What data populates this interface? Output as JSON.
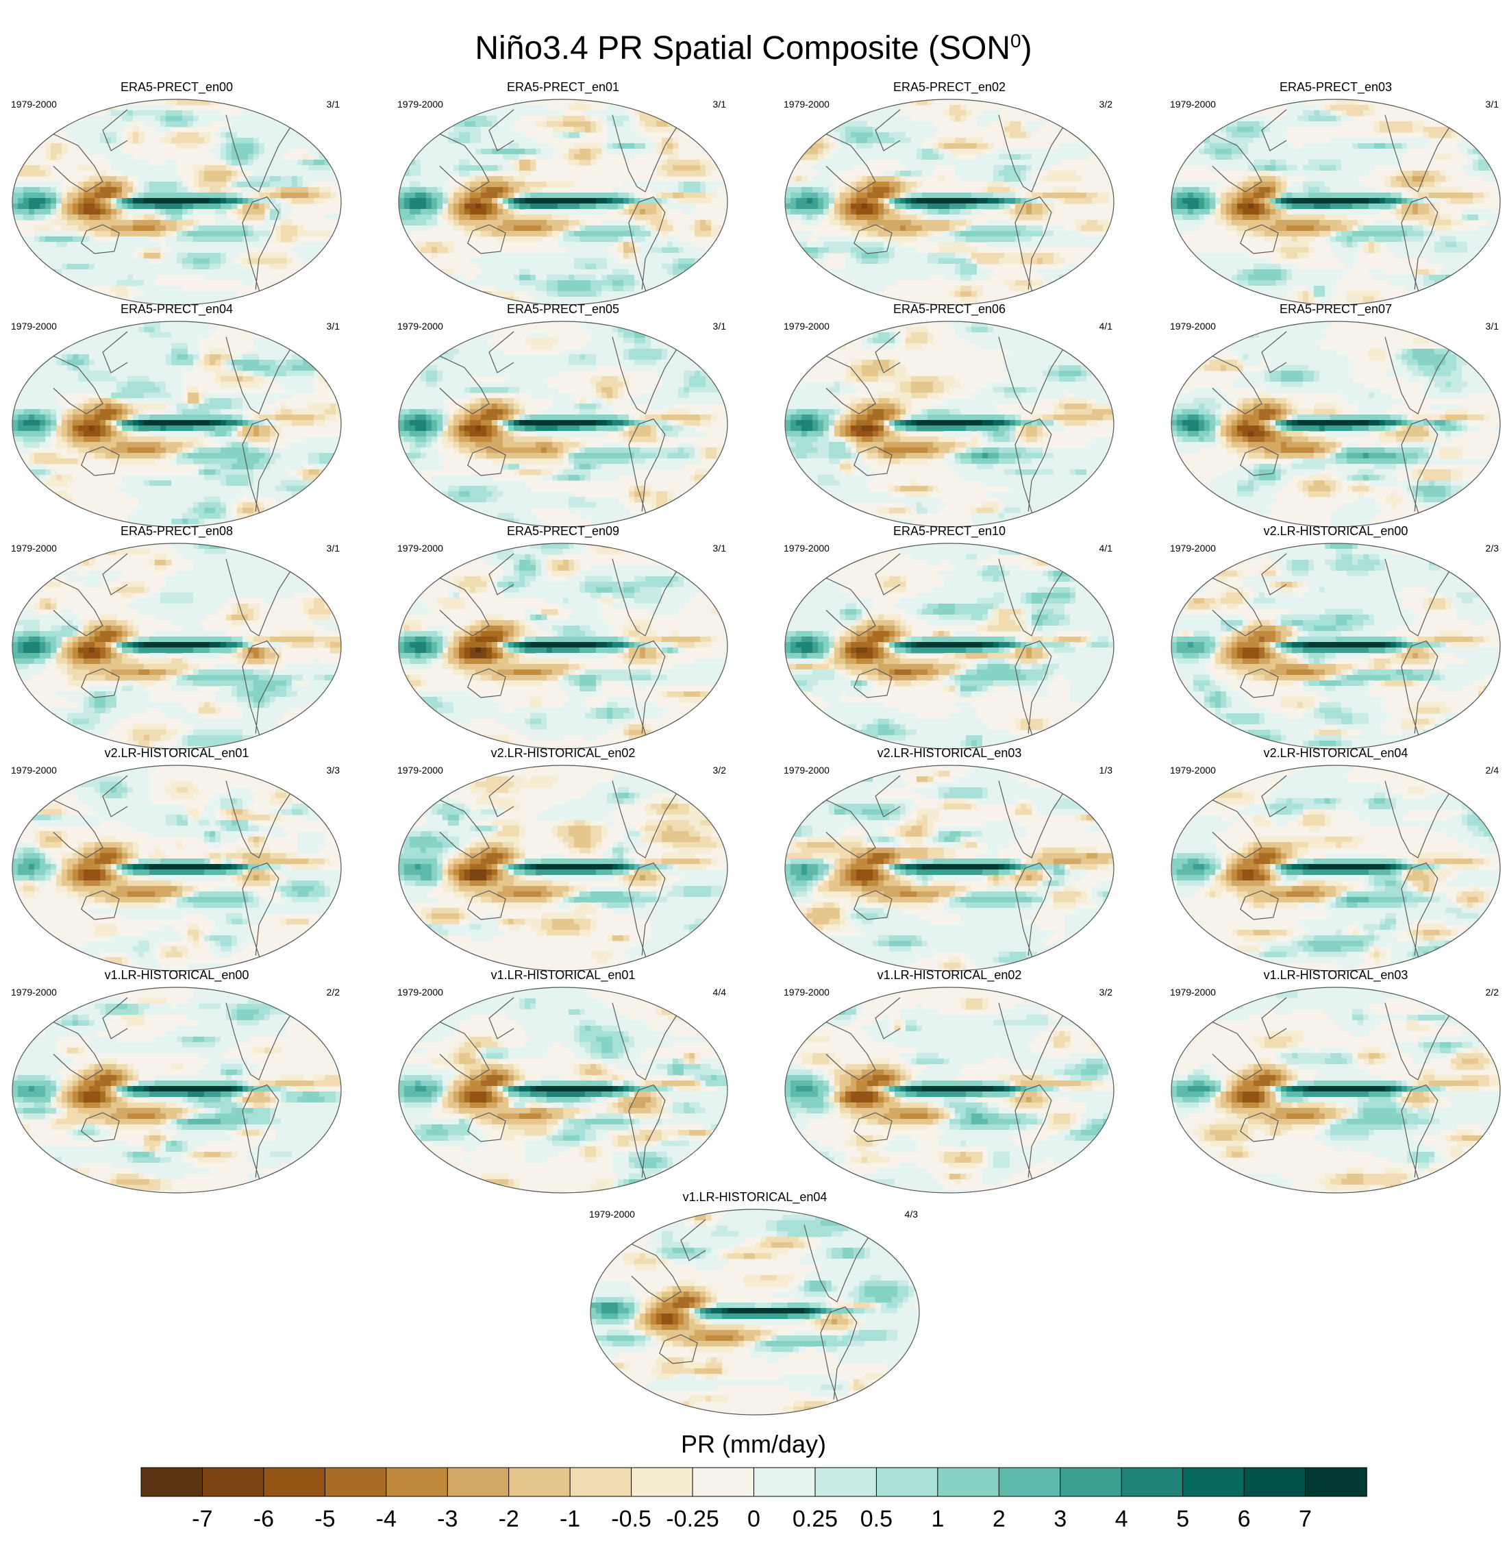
{
  "title": "Niño3.4 PR Spatial Composite (SON",
  "title_sup": "0",
  "title_close": ")",
  "colors": {
    "background": "#ffffff",
    "map_edge": "#555555",
    "coast": "#5a5a5a"
  },
  "chart_data": {
    "type": "heatmap",
    "description_variable": "PR",
    "colorbar": {
      "label": "PR (mm/day)",
      "tick_labels": [
        "-7",
        "-6",
        "-5",
        "-4",
        "-3",
        "-2",
        "-1",
        "-0.5",
        "-0.25",
        "0",
        "0.25",
        "0.5",
        "1",
        "2",
        "3",
        "4",
        "5",
        "6",
        "7"
      ],
      "levels": [
        -7,
        -6,
        -5,
        -4,
        -3,
        -2,
        -1,
        -0.5,
        -0.25,
        0,
        0.25,
        0.5,
        1,
        2,
        3,
        4,
        5,
        6,
        7
      ],
      "colors": [
        "#5a3410",
        "#7a4512",
        "#945416",
        "#a96c24",
        "#c28a3c",
        "#d3a865",
        "#e5c68d",
        "#f0dcb0",
        "#f6ecd2",
        "#f7f2ea",
        "#e5f3f1",
        "#c9ebe5",
        "#a6e0d6",
        "#86d2c4",
        "#5ebbac",
        "#3b9f91",
        "#1f8477",
        "#08695f",
        "#00514a",
        "#003a33"
      ]
    },
    "panels": [
      {
        "title": "ERA5-PRECT_en00",
        "period": "1979-2000",
        "count": "3/1",
        "pattern": "obs",
        "seed": 1
      },
      {
        "title": "ERA5-PRECT_en01",
        "period": "1979-2000",
        "count": "3/1",
        "pattern": "obs",
        "seed": 2
      },
      {
        "title": "ERA5-PRECT_en02",
        "period": "1979-2000",
        "count": "3/2",
        "pattern": "obs",
        "seed": 3
      },
      {
        "title": "ERA5-PRECT_en03",
        "period": "1979-2000",
        "count": "3/1",
        "pattern": "obs",
        "seed": 4
      },
      {
        "title": "ERA5-PRECT_en04",
        "period": "1979-2000",
        "count": "3/1",
        "pattern": "obs",
        "seed": 5
      },
      {
        "title": "ERA5-PRECT_en05",
        "period": "1979-2000",
        "count": "3/1",
        "pattern": "obs",
        "seed": 6
      },
      {
        "title": "ERA5-PRECT_en06",
        "period": "1979-2000",
        "count": "4/1",
        "pattern": "obs",
        "seed": 7
      },
      {
        "title": "ERA5-PRECT_en07",
        "period": "1979-2000",
        "count": "3/1",
        "pattern": "obs",
        "seed": 8
      },
      {
        "title": "ERA5-PRECT_en08",
        "period": "1979-2000",
        "count": "3/1",
        "pattern": "obs",
        "seed": 9
      },
      {
        "title": "ERA5-PRECT_en09",
        "period": "1979-2000",
        "count": "3/1",
        "pattern": "obs",
        "seed": 10
      },
      {
        "title": "ERA5-PRECT_en10",
        "period": "1979-2000",
        "count": "4/1",
        "pattern": "obs",
        "seed": 11
      },
      {
        "title": "v2.LR-HISTORICAL_en00",
        "period": "1979-2000",
        "count": "2/3",
        "pattern": "model",
        "seed": 12
      },
      {
        "title": "v2.LR-HISTORICAL_en01",
        "period": "1979-2000",
        "count": "3/3",
        "pattern": "model",
        "seed": 13
      },
      {
        "title": "v2.LR-HISTORICAL_en02",
        "period": "1979-2000",
        "count": "3/2",
        "pattern": "model",
        "seed": 14
      },
      {
        "title": "v2.LR-HISTORICAL_en03",
        "period": "1979-2000",
        "count": "1/3",
        "pattern": "model",
        "seed": 15
      },
      {
        "title": "v2.LR-HISTORICAL_en04",
        "period": "1979-2000",
        "count": "2/4",
        "pattern": "model",
        "seed": 16
      },
      {
        "title": "v1.LR-HISTORICAL_en00",
        "period": "1979-2000",
        "count": "2/2",
        "pattern": "model",
        "seed": 17
      },
      {
        "title": "v1.LR-HISTORICAL_en01",
        "period": "1979-2000",
        "count": "4/4",
        "pattern": "model",
        "seed": 18
      },
      {
        "title": "v1.LR-HISTORICAL_en02",
        "period": "1979-2000",
        "count": "3/2",
        "pattern": "model",
        "seed": 19
      },
      {
        "title": "v1.LR-HISTORICAL_en03",
        "period": "1979-2000",
        "count": "2/2",
        "pattern": "model",
        "seed": 20
      },
      {
        "title": "v1.LR-HISTORICAL_en04",
        "period": "1979-2000",
        "count": "4/3",
        "pattern": "model",
        "seed": 21
      }
    ]
  }
}
